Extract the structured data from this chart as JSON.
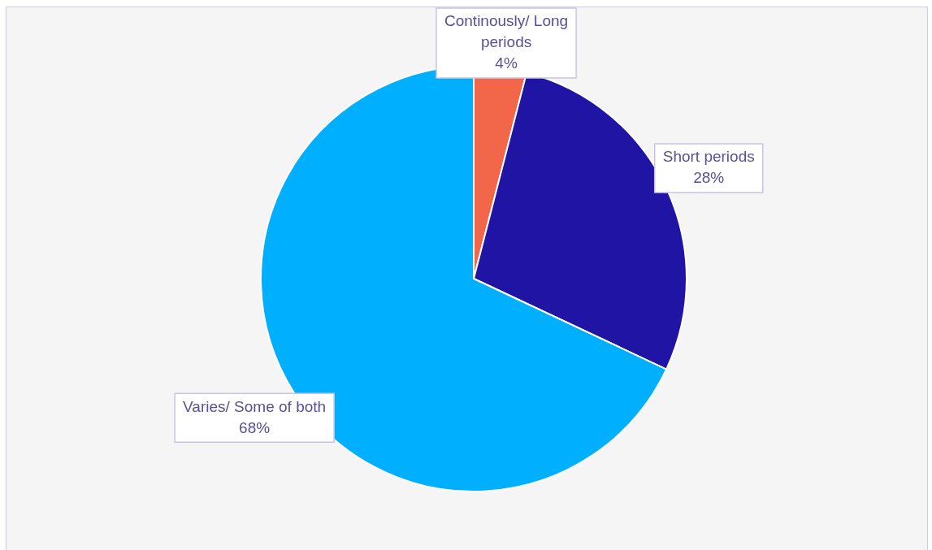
{
  "chart_data": {
    "type": "pie",
    "categories": [
      "Continously/ Long periods",
      "Short periods",
      "Varies/ Some of both"
    ],
    "values": [
      4,
      28,
      68
    ],
    "colors": [
      "#f26649",
      "#1f14a3",
      "#00b0ff"
    ],
    "value_labels": [
      "4%",
      "28%",
      "68%"
    ],
    "legend": false
  }
}
